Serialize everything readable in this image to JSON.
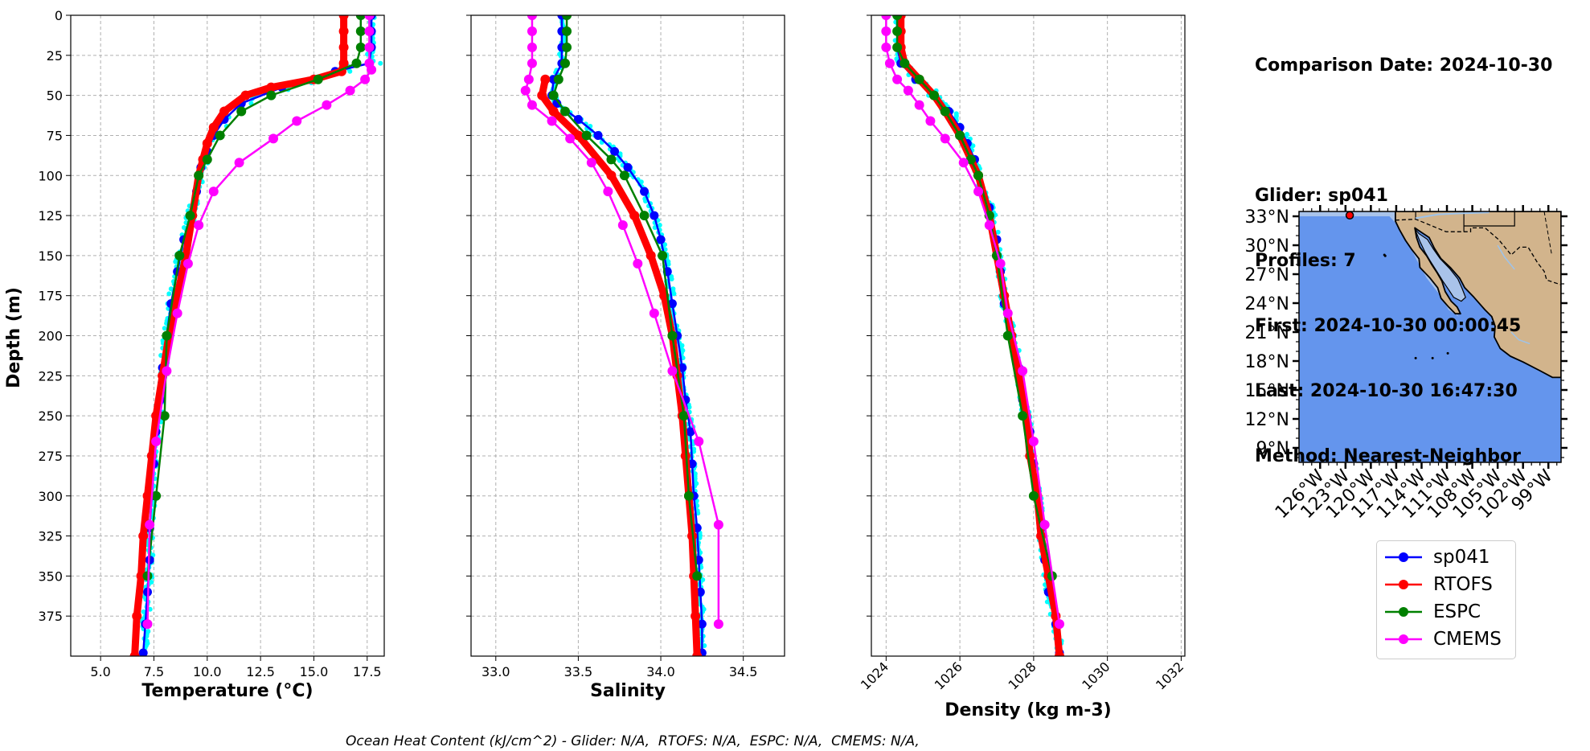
{
  "info": {
    "comparison_date": "Comparison Date: 2024-10-30",
    "glider": "Glider: sp041",
    "profiles": "Profiles: 7",
    "first": "First: 2024-10-30 00:00:45",
    "last": "Last: 2024-10-30 16:47:30",
    "method": "Method: Nearest-Neighbor"
  },
  "footer": "Ocean Heat Content (kJ/cm^2) - Glider: N/A,  RTOFS: N/A,  ESPC: N/A,  CMEMS: N/A,",
  "colors": {
    "sp041": "#0000ff",
    "RTOFS": "#ff0000",
    "ESPC": "#008000",
    "CMEMS": "#ff00ff",
    "glider_points": "#00ffff",
    "ocean": "#6495ed",
    "land": "#d2b48c",
    "shelf": "#a9c3ea"
  },
  "legend": [
    {
      "name": "sp041",
      "color": "#0000ff"
    },
    {
      "name": "RTOFS",
      "color": "#ff0000"
    },
    {
      "name": "ESPC",
      "color": "#008000"
    },
    {
      "name": "CMEMS",
      "color": "#ff00ff"
    }
  ],
  "chart_data": [
    {
      "type": "line",
      "xlabel": "Temperature (°C)",
      "ylabel": "Depth (m)",
      "xlim": [
        3.6,
        18.3
      ],
      "ylim": [
        400,
        0
      ],
      "grid": true,
      "xticks": [
        5.0,
        7.5,
        10.0,
        12.5,
        15.0,
        17.5
      ],
      "yticks": [
        0,
        25,
        50,
        75,
        100,
        125,
        150,
        175,
        200,
        225,
        250,
        275,
        300,
        325,
        350,
        375
      ],
      "series": [
        {
          "name": "sp041",
          "depth": [
            0,
            10,
            20,
            30,
            35,
            45,
            55,
            65,
            75,
            85,
            95,
            110,
            125,
            140,
            160,
            180,
            200,
            220,
            240,
            260,
            280,
            300,
            320,
            340,
            360,
            380,
            398
          ],
          "values": [
            17.7,
            17.7,
            17.7,
            17.6,
            16.0,
            13.5,
            11.6,
            10.8,
            10.3,
            10.0,
            9.7,
            9.5,
            9.2,
            8.9,
            8.6,
            8.3,
            8.1,
            7.9,
            7.8,
            7.6,
            7.5,
            7.4,
            7.3,
            7.3,
            7.2,
            7.1,
            7.0
          ]
        },
        {
          "name": "RTOFS",
          "depth": [
            0,
            10,
            20,
            30,
            35,
            40,
            45,
            50,
            60,
            70,
            80,
            90,
            100,
            125,
            150,
            175,
            200,
            225,
            250,
            275,
            300,
            325,
            350,
            375,
            400
          ],
          "values": [
            16.4,
            16.4,
            16.4,
            16.4,
            16.3,
            15.0,
            13.0,
            11.8,
            10.8,
            10.3,
            10.0,
            9.8,
            9.6,
            9.3,
            9.0,
            8.6,
            8.2,
            7.9,
            7.6,
            7.4,
            7.2,
            7.0,
            6.9,
            6.7,
            6.6
          ]
        },
        {
          "name": "ESPC",
          "depth": [
            0,
            10,
            20,
            30,
            40,
            50,
            60,
            75,
            90,
            100,
            125,
            150,
            200,
            250,
            300,
            350
          ],
          "values": [
            17.2,
            17.2,
            17.2,
            17.0,
            15.2,
            13.0,
            11.6,
            10.6,
            10.0,
            9.6,
            9.2,
            8.7,
            8.1,
            8.0,
            7.6,
            7.2
          ]
        },
        {
          "name": "CMEMS",
          "depth": [
            0,
            10,
            20,
            30,
            34,
            40,
            47,
            56,
            66,
            77,
            92,
            110,
            131,
            155,
            186,
            222,
            266,
            318,
            380
          ],
          "values": [
            17.6,
            17.6,
            17.6,
            17.6,
            17.7,
            17.4,
            16.7,
            15.6,
            14.2,
            13.1,
            11.5,
            10.3,
            9.6,
            9.1,
            8.6,
            8.1,
            7.6,
            7.3,
            7.2
          ]
        }
      ]
    },
    {
      "type": "line",
      "xlabel": "Salinity",
      "xlim": [
        32.85,
        34.75
      ],
      "ylim": [
        400,
        0
      ],
      "grid": true,
      "xticks": [
        33.0,
        33.5,
        34.0,
        34.5
      ],
      "series": [
        {
          "name": "sp041",
          "depth": [
            0,
            10,
            20,
            30,
            40,
            50,
            55,
            65,
            75,
            85,
            95,
            110,
            125,
            140,
            160,
            180,
            200,
            220,
            240,
            260,
            280,
            300,
            320,
            340,
            360,
            380,
            398
          ],
          "values": [
            33.4,
            33.4,
            33.4,
            33.4,
            33.35,
            33.34,
            33.37,
            33.5,
            33.62,
            33.72,
            33.8,
            33.9,
            33.96,
            34.0,
            34.04,
            34.07,
            34.1,
            34.13,
            34.15,
            34.18,
            34.19,
            34.2,
            34.22,
            34.23,
            34.24,
            34.25,
            34.25
          ]
        },
        {
          "name": "RTOFS",
          "depth": [
            0,
            30,
            40,
            50,
            60,
            75,
            100,
            125,
            150,
            175,
            200,
            225,
            250,
            275,
            300,
            325,
            350,
            375,
            400
          ],
          "values": [
            null,
            null,
            33.3,
            33.28,
            33.35,
            33.5,
            33.7,
            33.84,
            33.94,
            34.02,
            34.07,
            34.1,
            34.13,
            34.15,
            34.17,
            34.19,
            34.2,
            34.21,
            34.22
          ]
        },
        {
          "name": "ESPC",
          "depth": [
            0,
            10,
            20,
            30,
            40,
            50,
            60,
            75,
            90,
            100,
            125,
            150,
            200,
            250,
            300,
            350
          ],
          "values": [
            33.43,
            33.43,
            33.43,
            33.42,
            33.38,
            33.35,
            33.42,
            33.55,
            33.7,
            33.78,
            33.9,
            34.01,
            34.07,
            34.14,
            34.17,
            34.22
          ]
        },
        {
          "name": "CMEMS",
          "depth": [
            0,
            10,
            20,
            30,
            40,
            47,
            56,
            66,
            77,
            92,
            110,
            131,
            155,
            186,
            222,
            266,
            318,
            380
          ],
          "values": [
            33.22,
            33.22,
            33.22,
            33.22,
            33.2,
            33.18,
            33.22,
            33.34,
            33.45,
            33.58,
            33.68,
            33.77,
            33.86,
            33.96,
            34.07,
            34.23,
            34.35,
            34.35
          ]
        }
      ]
    },
    {
      "type": "line",
      "xlabel": "Density (kg m-3)",
      "xlim": [
        1023.6,
        1032.1
      ],
      "ylim": [
        400,
        0
      ],
      "grid": true,
      "xticks": [
        1024,
        1026,
        1028,
        1030,
        1032
      ],
      "series": [
        {
          "name": "sp041",
          "depth": [
            0,
            10,
            20,
            30,
            40,
            50,
            60,
            70,
            80,
            90,
            100,
            120,
            140,
            160,
            180,
            200,
            220,
            240,
            260,
            280,
            300,
            320,
            340,
            360,
            380,
            398
          ],
          "values": [
            1024.3,
            1024.3,
            1024.3,
            1024.4,
            1024.8,
            1025.3,
            1025.7,
            1026.0,
            1026.2,
            1026.4,
            1026.5,
            1026.8,
            1027.0,
            1027.1,
            1027.2,
            1027.4,
            1027.6,
            1027.7,
            1027.9,
            1028.0,
            1028.1,
            1028.2,
            1028.3,
            1028.4,
            1028.6,
            1028.7
          ]
        },
        {
          "name": "RTOFS",
          "depth": [
            0,
            10,
            20,
            30,
            40,
            50,
            60,
            75,
            100,
            125,
            150,
            175,
            200,
            225,
            250,
            275,
            300,
            325,
            350,
            375,
            400
          ],
          "values": [
            1024.4,
            1024.4,
            1024.4,
            1024.5,
            1024.9,
            1025.3,
            1025.6,
            1026.0,
            1026.5,
            1026.8,
            1027.0,
            1027.2,
            1027.4,
            1027.6,
            1027.8,
            1027.9,
            1028.1,
            1028.2,
            1028.4,
            1028.6,
            1028.7
          ]
        },
        {
          "name": "ESPC",
          "depth": [
            0,
            10,
            20,
            30,
            40,
            50,
            60,
            75,
            90,
            100,
            125,
            150,
            200,
            250,
            300,
            350
          ],
          "values": [
            1024.3,
            1024.3,
            1024.3,
            1024.5,
            1024.9,
            1025.3,
            1025.6,
            1026.0,
            1026.3,
            1026.5,
            1026.8,
            1027.0,
            1027.3,
            1027.7,
            1028.0,
            1028.5
          ]
        },
        {
          "name": "CMEMS",
          "depth": [
            0,
            10,
            20,
            30,
            40,
            47,
            56,
            66,
            77,
            92,
            110,
            131,
            155,
            186,
            222,
            266,
            318,
            380
          ],
          "values": [
            1024.0,
            1024.0,
            1024.0,
            1024.1,
            1024.3,
            1024.6,
            1024.9,
            1025.2,
            1025.6,
            1026.1,
            1026.5,
            1026.8,
            1027.1,
            1027.3,
            1027.7,
            1028.0,
            1028.3,
            1028.7
          ]
        }
      ]
    }
  ],
  "map": {
    "lat_ticks": [
      "33°N",
      "30°N",
      "27°N",
      "24°N",
      "21°N",
      "18°N",
      "15°N",
      "12°N",
      "9°N"
    ],
    "lon_ticks": [
      "126°W",
      "123°W",
      "120°W",
      "117°W",
      "114°W",
      "111°W",
      "108°W",
      "105°W",
      "102°W",
      "99°W"
    ],
    "lon_range": [
      -128.5,
      -97.5
    ],
    "lat_range": [
      7.5,
      33.5
    ],
    "glider_position": {
      "lon": -122.5,
      "lat": 33.1
    }
  }
}
